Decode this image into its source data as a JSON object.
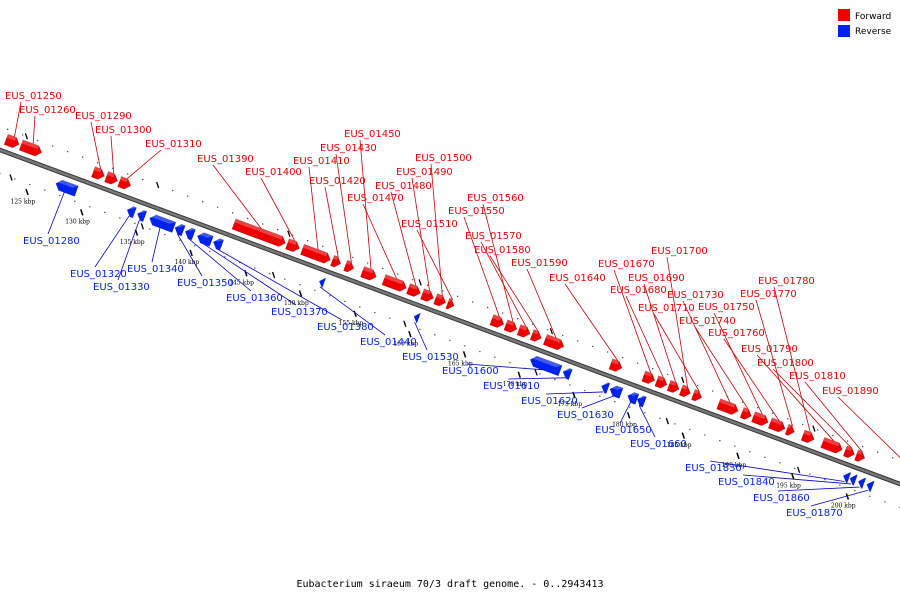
{
  "legend": {
    "forward": {
      "label": "Forward",
      "color": "#ee0000"
    },
    "reverse": {
      "label": "Reverse",
      "color": "#0022ee"
    }
  },
  "caption": "Eubacterium siraeum 70/3 draft genome. - 0..2943413",
  "colors": {
    "backbone": "#777777",
    "backbone_edge": "#333333",
    "forward_leader": "#cc0000",
    "reverse_leader": "#0000cc"
  },
  "scale": {
    "ticks": [
      {
        "kbp": 125,
        "label": "125 kbp"
      },
      {
        "kbp": 130,
        "label": "130 kbp"
      },
      {
        "kbp": 135,
        "label": "135 kbp"
      },
      {
        "kbp": 140,
        "label": "140 kbp"
      },
      {
        "kbp": 145,
        "label": "145 kbp"
      },
      {
        "kbp": 150,
        "label": "150 kbp"
      },
      {
        "kbp": 155,
        "label": "155 kbp"
      },
      {
        "kbp": 160,
        "label": "160 kbp"
      },
      {
        "kbp": 165,
        "label": "165 kbp"
      },
      {
        "kbp": 170,
        "label": "170 kbp"
      },
      {
        "kbp": 175,
        "label": "175 kbp"
      },
      {
        "kbp": 180,
        "label": "180 kbp"
      },
      {
        "kbp": 185,
        "label": "185 kbp"
      },
      {
        "kbp": 190,
        "label": "190 kbp"
      },
      {
        "kbp": 195,
        "label": "195 kbp"
      },
      {
        "kbp": 200,
        "label": "200 kbp"
      }
    ]
  },
  "forward_genes": [
    {
      "label": "EUS_01250"
    },
    {
      "label": "EUS_01260"
    },
    {
      "label": "EUS_01290"
    },
    {
      "label": "EUS_01300"
    },
    {
      "label": "EUS_01310"
    },
    {
      "label": "EUS_01390"
    },
    {
      "label": "EUS_01400"
    },
    {
      "label": "EUS_01410"
    },
    {
      "label": "EUS_01420"
    },
    {
      "label": "EUS_01430"
    },
    {
      "label": "EUS_01450"
    },
    {
      "label": "EUS_01470"
    },
    {
      "label": "EUS_01480"
    },
    {
      "label": "EUS_01490"
    },
    {
      "label": "EUS_01500"
    },
    {
      "label": "EUS_01510"
    },
    {
      "label": "EUS_01550"
    },
    {
      "label": "EUS_01560"
    },
    {
      "label": "EUS_01570"
    },
    {
      "label": "EUS_01580"
    },
    {
      "label": "EUS_01590"
    },
    {
      "label": "EUS_01640"
    },
    {
      "label": "EUS_01670"
    },
    {
      "label": "EUS_01680"
    },
    {
      "label": "EUS_01690"
    },
    {
      "label": "EUS_01700"
    },
    {
      "label": "EUS_01710"
    },
    {
      "label": "EUS_01730"
    },
    {
      "label": "EUS_01740"
    },
    {
      "label": "EUS_01750"
    },
    {
      "label": "EUS_01760"
    },
    {
      "label": "EUS_01770"
    },
    {
      "label": "EUS_01780"
    },
    {
      "label": "EUS_01790"
    },
    {
      "label": "EUS_01800"
    },
    {
      "label": "EUS_01810"
    },
    {
      "label": "EUS_01890"
    }
  ],
  "reverse_genes": [
    {
      "label": "EUS_01280"
    },
    {
      "label": "EUS_01320"
    },
    {
      "label": "EUS_01330"
    },
    {
      "label": "EUS_01340"
    },
    {
      "label": "EUS_01350"
    },
    {
      "label": "EUS_01360"
    },
    {
      "label": "EUS_01370"
    },
    {
      "label": "EUS_01380"
    },
    {
      "label": "EUS_01440"
    },
    {
      "label": "EUS_01530"
    },
    {
      "label": "EUS_01600"
    },
    {
      "label": "EUS_01610"
    },
    {
      "label": "EUS_01620"
    },
    {
      "label": "EUS_01630"
    },
    {
      "label": "EUS_01650"
    },
    {
      "label": "EUS_01660"
    },
    {
      "label": "EUS_01830"
    },
    {
      "label": "EUS_01840"
    },
    {
      "label": "EUS_01860"
    },
    {
      "label": "EUS_01870"
    }
  ]
}
